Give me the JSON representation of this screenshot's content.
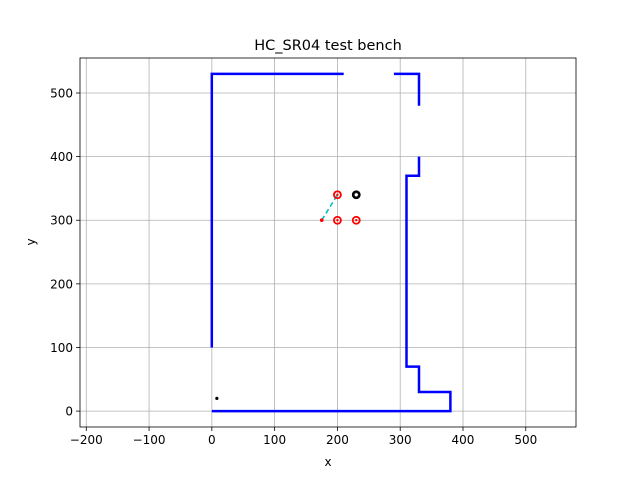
{
  "chart_data": {
    "type": "line",
    "title": "HC_SR04 test bench",
    "xlabel": "x",
    "ylabel": "y",
    "xlim": [
      -210,
      580
    ],
    "ylim": [
      -25,
      555
    ],
    "xticks": [
      -200,
      -100,
      0,
      100,
      200,
      300,
      400,
      500
    ],
    "yticks": [
      0,
      100,
      200,
      300,
      400,
      500
    ],
    "grid": true,
    "colors": {
      "walls": "#0000ff",
      "sensors": "#ff0000",
      "target": "#000000",
      "beam": "#00bfbf"
    },
    "wall_segments": [
      [
        [
          0,
          100
        ],
        [
          0,
          530
        ],
        [
          210,
          530
        ]
      ],
      [
        [
          290,
          530
        ],
        [
          330,
          530
        ],
        [
          330,
          480
        ]
      ],
      [
        [
          330,
          400
        ],
        [
          330,
          370
        ],
        [
          310,
          370
        ],
        [
          310,
          70
        ],
        [
          330,
          70
        ],
        [
          330,
          30
        ],
        [
          380,
          30
        ],
        [
          380,
          0
        ],
        [
          0,
          0
        ]
      ]
    ],
    "sensor_points": [
      [
        200,
        340
      ],
      [
        200,
        300
      ],
      [
        230,
        300
      ]
    ],
    "target_point": [
      230,
      340
    ],
    "origin_marker": [
      175,
      300
    ],
    "beam": [
      [
        175,
        300
      ],
      [
        200,
        340
      ]
    ],
    "small_marker": [
      8,
      20
    ]
  }
}
